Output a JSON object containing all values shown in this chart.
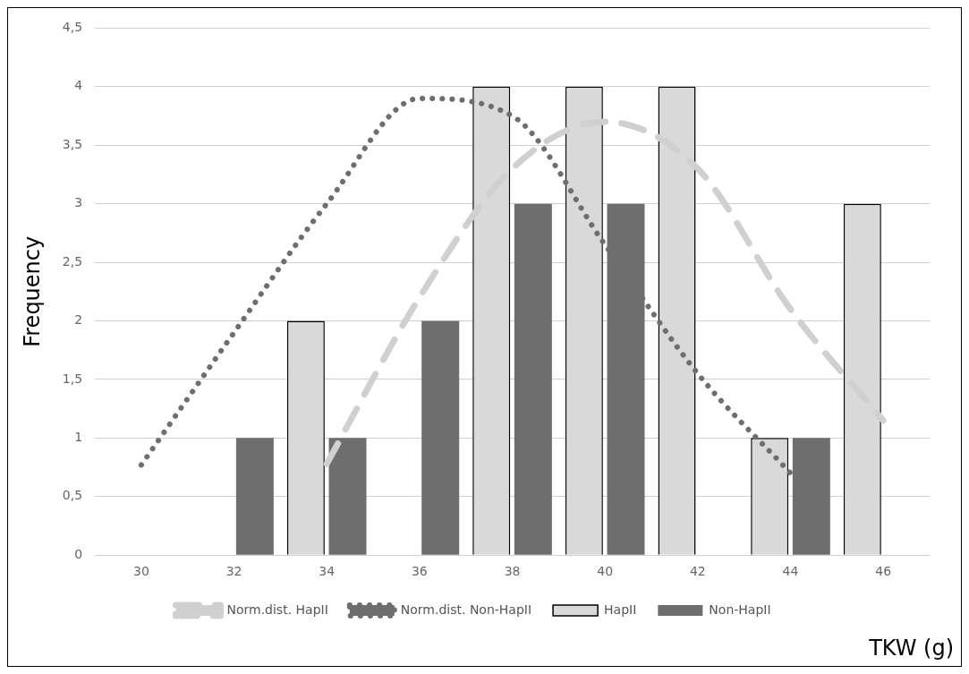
{
  "chart_data": {
    "type": "bar",
    "xlabel": "TKW (g)",
    "ylabel": "Frequency",
    "categories": [
      "30",
      "32",
      "34",
      "36",
      "38",
      "40",
      "42",
      "44",
      "46"
    ],
    "series": [
      {
        "name": "HapII",
        "color": "#d9d9d9",
        "values": [
          0,
          0,
          2,
          0,
          4,
          4,
          4,
          1,
          3
        ]
      },
      {
        "name": "Non-HapII",
        "color": "#6e6e6e",
        "values": [
          0,
          1,
          1,
          2,
          3,
          3,
          0,
          1,
          0
        ]
      },
      {
        "name": "Norm.dist. HapII",
        "type": "line",
        "line_style": "dashed",
        "color": "#d0d0d0",
        "values": [
          null,
          null,
          0.78,
          2.2,
          3.3,
          3.7,
          3.3,
          2.1,
          1.15
        ]
      },
      {
        "name": "Norm.dist. Non-HapII",
        "type": "line",
        "line_style": "dotted",
        "color": "#6e6e6e",
        "values": [
          0.77,
          1.9,
          3.0,
          3.9,
          3.75,
          2.65,
          1.55,
          0.7,
          null
        ]
      }
    ],
    "ylim": [
      0,
      4.5
    ],
    "yticks": [
      0,
      {
        "value": 0.5,
        "label": "0,5"
      },
      1,
      {
        "value": 1.5,
        "label": "1,5"
      },
      2,
      {
        "value": 2.5,
        "label": "2,5"
      },
      3,
      {
        "value": 3.5,
        "label": "3,5"
      },
      4,
      {
        "value": 4.5,
        "label": "4,5"
      }
    ],
    "grid": "y",
    "legend": "bottom"
  }
}
